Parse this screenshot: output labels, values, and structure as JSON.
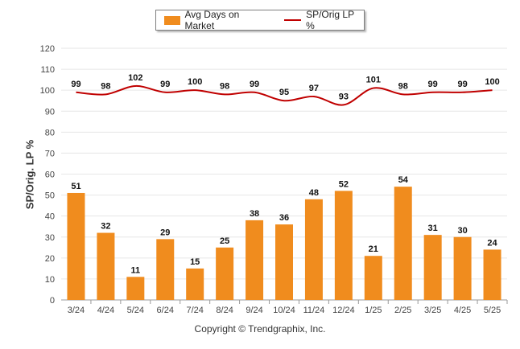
{
  "chart_data": {
    "type": "bar+line",
    "categories": [
      "3/24",
      "4/24",
      "5/24",
      "6/24",
      "7/24",
      "8/24",
      "9/24",
      "10/24",
      "11/24",
      "12/24",
      "1/25",
      "2/25",
      "3/25",
      "4/25",
      "5/25"
    ],
    "series": [
      {
        "name": "Avg Days on Market",
        "type": "bar",
        "color": "#F08C1E",
        "values": [
          51,
          32,
          11,
          29,
          15,
          25,
          38,
          36,
          48,
          52,
          21,
          54,
          31,
          30,
          24
        ]
      },
      {
        "name": "SP/Orig LP %",
        "type": "line",
        "color": "#C00000",
        "values": [
          99,
          98,
          102,
          99,
          100,
          98,
          99,
          95,
          97,
          93,
          101,
          98,
          99,
          99,
          100
        ]
      }
    ],
    "ylabel": "SP/Orig. LP %",
    "ylim": [
      0,
      120
    ],
    "yticks": [
      0,
      10,
      20,
      30,
      40,
      50,
      60,
      70,
      80,
      90,
      100,
      110,
      120
    ],
    "grid": true,
    "legend_position": "top-center"
  },
  "footer": {
    "copyright": "Copyright © Trendgraphix, Inc."
  }
}
